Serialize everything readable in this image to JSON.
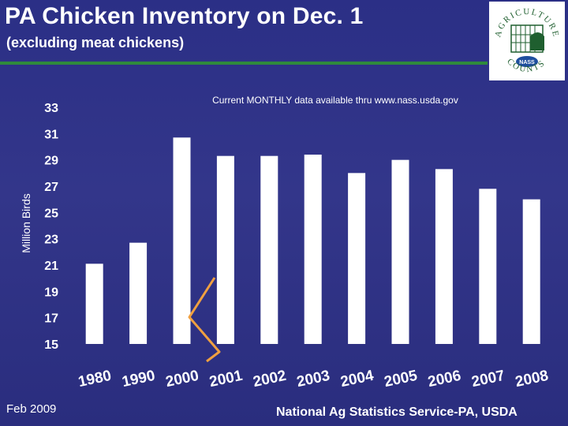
{
  "slide": {
    "title": "PA Chicken Inventory on Dec. 1",
    "subtitle": "(excluding meat chickens)",
    "footer_left": "Feb 2009",
    "footer_right": "National Ag Statistics Service-PA, USDA"
  },
  "logo": {
    "text_top": "AGRICULTURE",
    "text_bottom": "COUNTS",
    "badge": "NASS"
  },
  "colors": {
    "background": "#2f338a",
    "bars": "#ffffff",
    "axis_break": "#f0a040",
    "rule": "#2f8a3c"
  },
  "chart_data": {
    "type": "bar",
    "title": "",
    "annotation": "Current MONTHLY data available thru www.nass.usda.gov",
    "ylabel": "Million Birds",
    "xlabel": "",
    "categories": [
      "1980",
      "1990",
      "2000",
      "2001",
      "2002",
      "2003",
      "2004",
      "2005",
      "2006",
      "2007",
      "2008"
    ],
    "values": [
      21.1,
      22.7,
      30.7,
      29.3,
      29.3,
      29.4,
      28.0,
      29.0,
      28.3,
      26.8,
      26.0
    ],
    "ylim": [
      15,
      33
    ],
    "yticks": [
      "15",
      "17",
      "19",
      "21",
      "23",
      "25",
      "27",
      "29",
      "31",
      "33"
    ],
    "axis_break": true,
    "grid": false,
    "legend": "none"
  }
}
